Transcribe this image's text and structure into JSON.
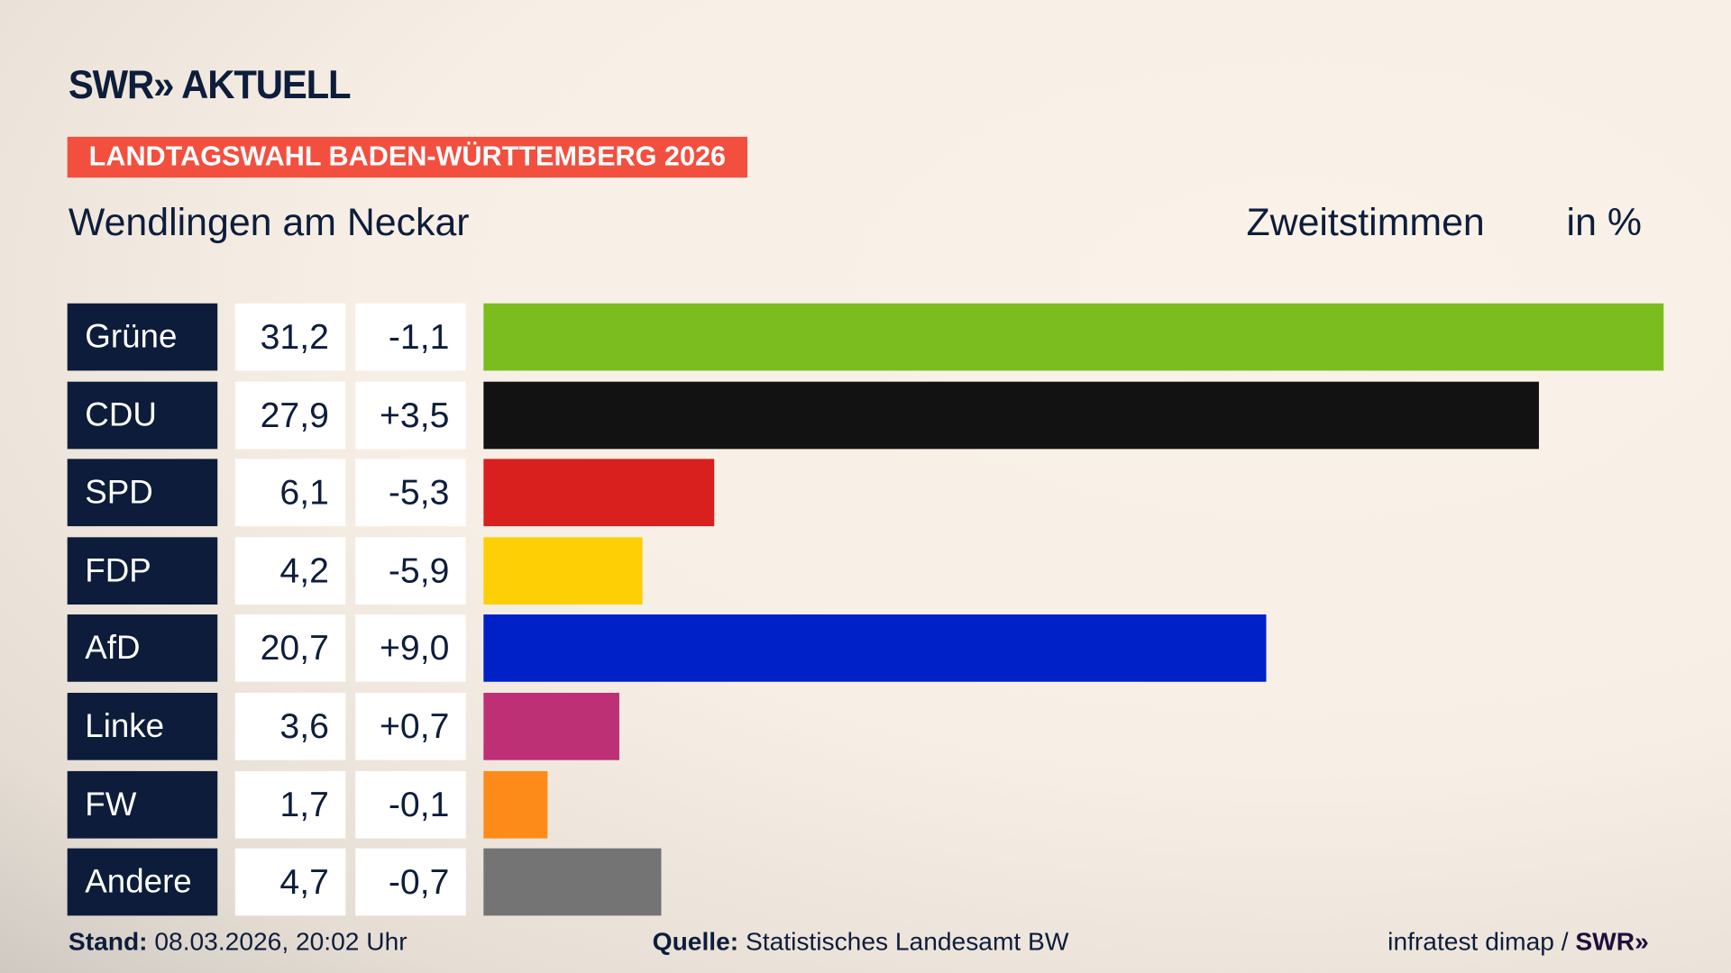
{
  "header": {
    "logo": "SWR» AKTUELL",
    "banner": "LANDTAGSWAHL BADEN-WÜRTTEMBERG 2026",
    "place": "Wendlingen am Neckar",
    "measure": "Zweitstimmen",
    "unit": "in %"
  },
  "chart_data": {
    "type": "bar",
    "orientation": "horizontal",
    "categories": [
      "Grüne",
      "CDU",
      "SPD",
      "FDP",
      "AfD",
      "Linke",
      "FW",
      "Andere"
    ],
    "values": [
      31.2,
      27.9,
      6.1,
      4.2,
      20.7,
      3.6,
      1.7,
      4.7
    ],
    "value_labels": [
      "31,2",
      "27,9",
      "6,1",
      "4,2",
      "20,7",
      "3,6",
      "1,7",
      "4,7"
    ],
    "change_labels": [
      "-1,1",
      "+3,5",
      "-5,3",
      "-5,9",
      "+9,0",
      "+0,7",
      "-0,1",
      "-0,7"
    ],
    "colors": [
      "#7bbd1e",
      "#121212",
      "#d9201e",
      "#ffcf06",
      "#0020c8",
      "#bd3076",
      "#fd8b1a",
      "#747474"
    ],
    "xlim": [
      0,
      31.2
    ],
    "grid": false
  },
  "footer": {
    "stand_label": "Stand:",
    "stand_value": "08.03.2026, 20:02 Uhr",
    "source_label": "Quelle:",
    "source_value": "Statistisches Landesamt BW",
    "credit": "infratest dimap /",
    "credit_logo": "SWR»"
  }
}
